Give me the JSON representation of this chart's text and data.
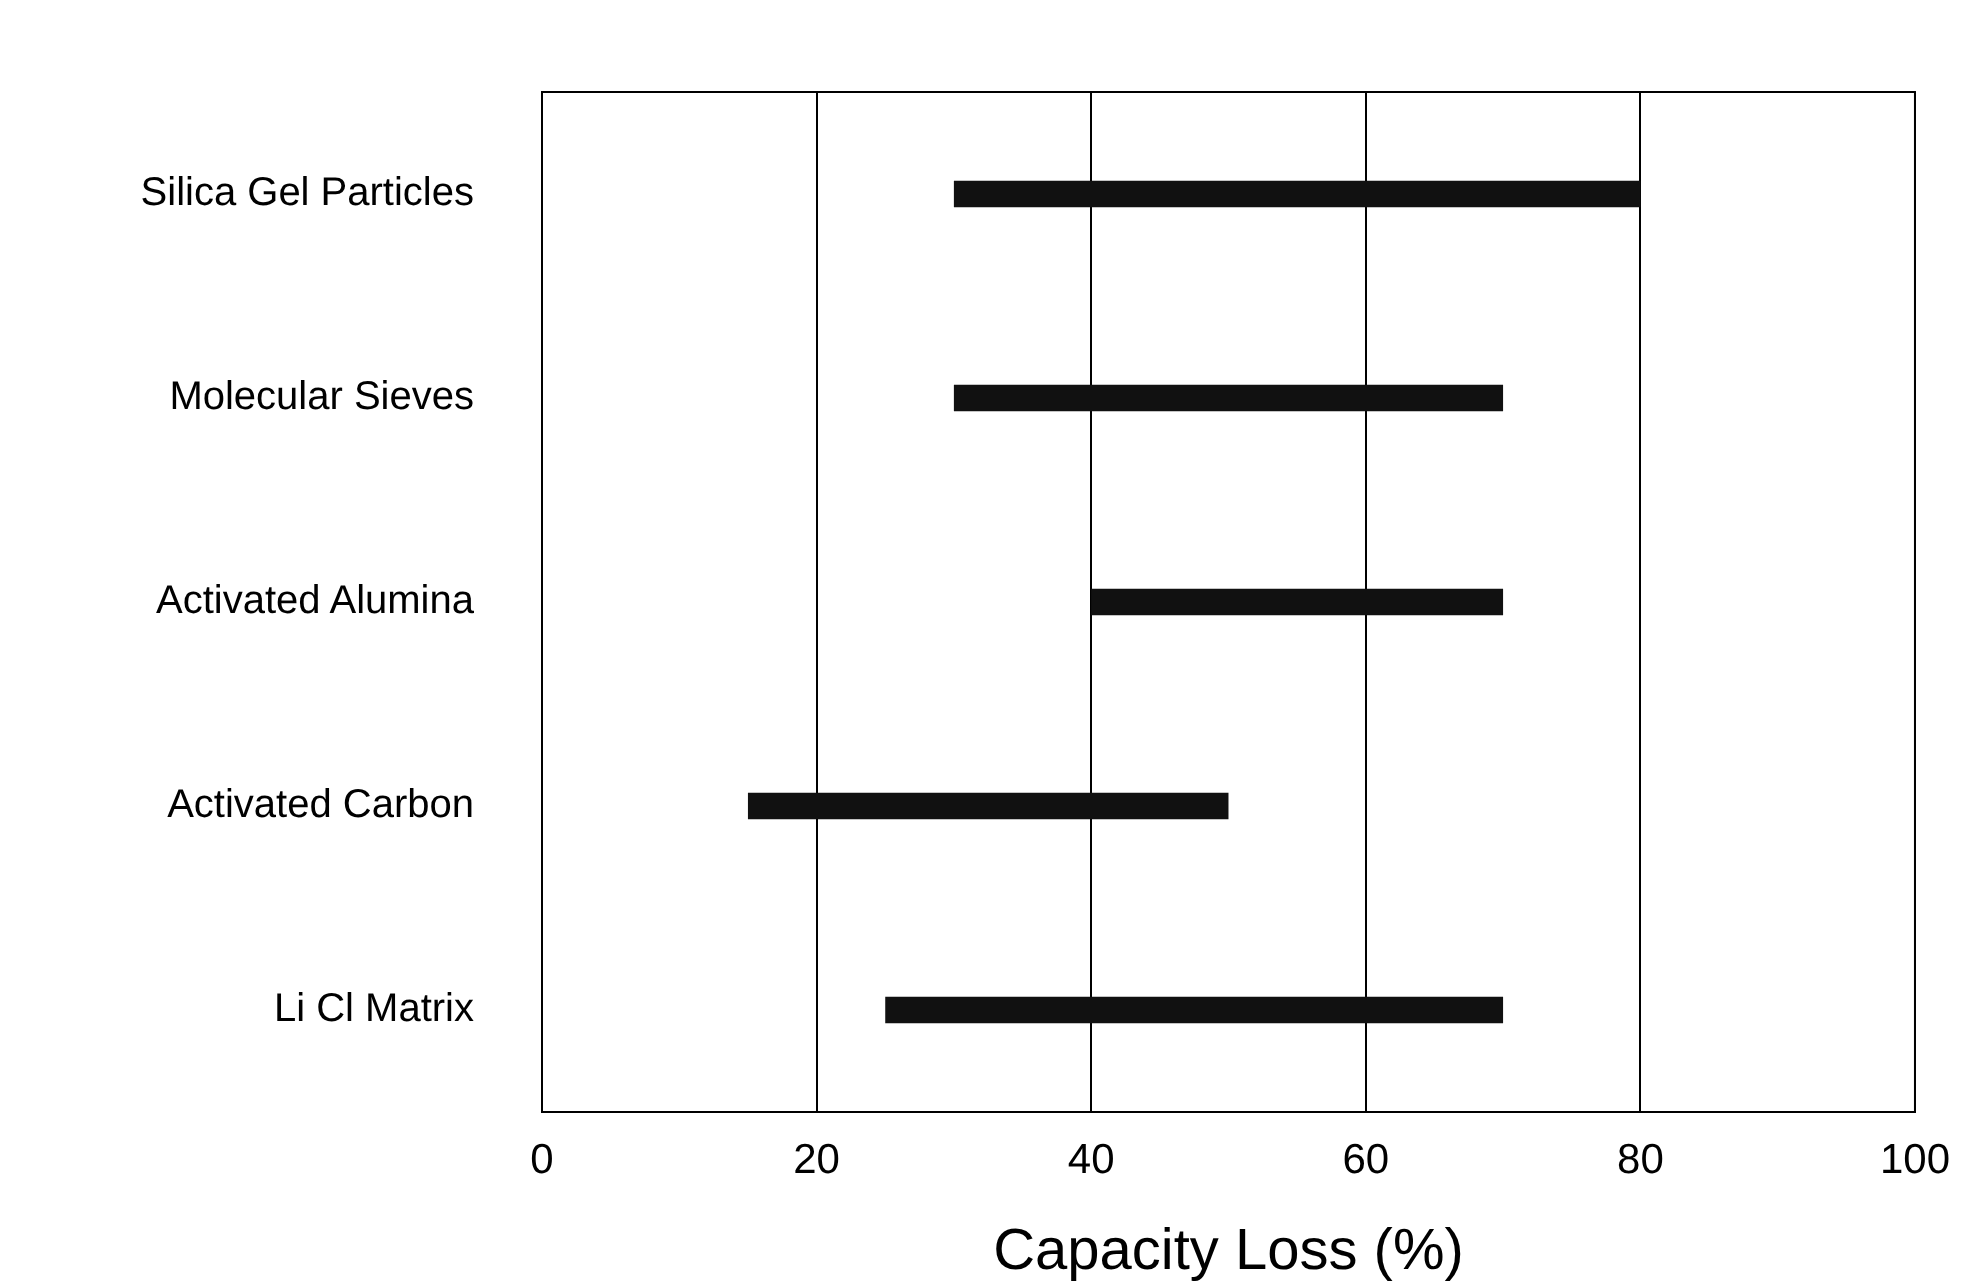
{
  "chart_data": {
    "type": "bar",
    "orientation": "horizontal",
    "xlabel": "Capacity Loss (%)",
    "categories": [
      "Silica Gel Particles",
      "Molecular Sieves",
      "Activated Alumina",
      "Activated Carbon",
      "Li Cl Matrix"
    ],
    "base": [
      30,
      30,
      40,
      15,
      25
    ],
    "values": [
      50,
      40,
      30,
      35,
      45
    ],
    "color": "#111111",
    "xlim": [
      0,
      100
    ],
    "xticks": [
      0,
      20,
      40,
      60,
      80,
      100
    ],
    "grid": "x",
    "legend": false
  }
}
